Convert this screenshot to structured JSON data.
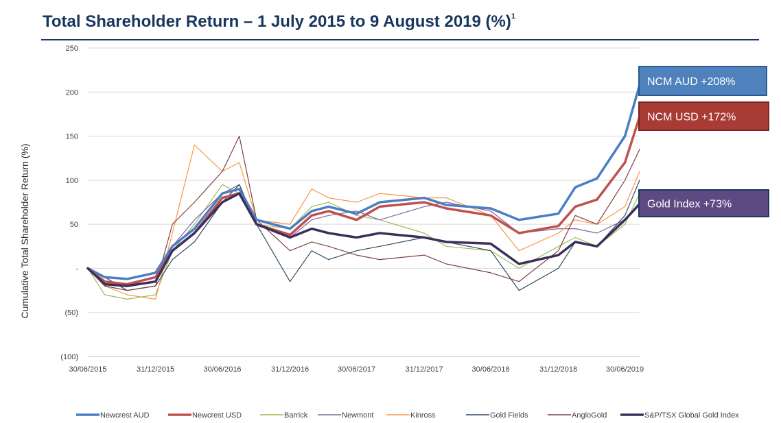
{
  "title": {
    "main": "Total Shareholder Return – 1 July 2015 to 9 August 2019 (%)",
    "footnote": "1"
  },
  "chart_data": {
    "type": "line",
    "ylabel": "Cumulative Total Shareholder Return (%)",
    "ylim": [
      -100,
      250
    ],
    "y_ticks": [
      250,
      200,
      150,
      100,
      50,
      0,
      -50,
      -100
    ],
    "y_tick_labels": [
      "250",
      "200",
      "150",
      "100",
      "50",
      "-",
      "(50)",
      "(100)"
    ],
    "x_ticks": [
      "30/06/2015",
      "31/12/2015",
      "30/06/2016",
      "31/12/2016",
      "30/06/2017",
      "31/12/2017",
      "30/06/2018",
      "31/12/2018",
      "30/06/2019"
    ],
    "x_range": [
      "2015-06-30",
      "2019-08-09"
    ],
    "grid": "horizontal",
    "legend_position": "bottom",
    "series": [
      {
        "name": "Newcrest AUD",
        "color": "#4a7ec4",
        "width": 3.5,
        "points": [
          [
            "2015-06-30",
            0
          ],
          [
            "2015-08-15",
            -10
          ],
          [
            "2015-10-15",
            -12
          ],
          [
            "2015-12-31",
            -5
          ],
          [
            "2016-02-15",
            25
          ],
          [
            "2016-04-15",
            45
          ],
          [
            "2016-06-30",
            85
          ],
          [
            "2016-08-15",
            90
          ],
          [
            "2016-10-01",
            55
          ],
          [
            "2016-12-31",
            45
          ],
          [
            "2017-02-28",
            65
          ],
          [
            "2017-04-15",
            70
          ],
          [
            "2017-06-30",
            62
          ],
          [
            "2017-09-01",
            75
          ],
          [
            "2017-12-31",
            80
          ],
          [
            "2018-03-01",
            72
          ],
          [
            "2018-06-30",
            68
          ],
          [
            "2018-09-15",
            55
          ],
          [
            "2018-12-31",
            62
          ],
          [
            "2019-02-15",
            92
          ],
          [
            "2019-04-15",
            102
          ],
          [
            "2019-06-30",
            150
          ],
          [
            "2019-08-09",
            208
          ]
        ]
      },
      {
        "name": "Newcrest USD",
        "color": "#c0504d",
        "width": 3.5,
        "points": [
          [
            "2015-06-30",
            0
          ],
          [
            "2015-08-15",
            -15
          ],
          [
            "2015-10-15",
            -18
          ],
          [
            "2015-12-31",
            -10
          ],
          [
            "2016-02-15",
            20
          ],
          [
            "2016-04-15",
            40
          ],
          [
            "2016-06-30",
            80
          ],
          [
            "2016-08-15",
            85
          ],
          [
            "2016-10-01",
            50
          ],
          [
            "2016-12-31",
            38
          ],
          [
            "2017-02-28",
            60
          ],
          [
            "2017-04-15",
            65
          ],
          [
            "2017-06-30",
            55
          ],
          [
            "2017-09-01",
            70
          ],
          [
            "2017-12-31",
            75
          ],
          [
            "2018-03-01",
            68
          ],
          [
            "2018-06-30",
            60
          ],
          [
            "2018-09-15",
            40
          ],
          [
            "2018-12-31",
            48
          ],
          [
            "2019-02-15",
            70
          ],
          [
            "2019-04-15",
            78
          ],
          [
            "2019-06-30",
            120
          ],
          [
            "2019-08-09",
            172
          ]
        ]
      },
      {
        "name": "Barrick",
        "color": "#9bbb59",
        "width": 1.2,
        "points": [
          [
            "2015-06-30",
            0
          ],
          [
            "2015-08-15",
            -30
          ],
          [
            "2015-10-15",
            -35
          ],
          [
            "2015-12-31",
            -30
          ],
          [
            "2016-02-15",
            20
          ],
          [
            "2016-04-15",
            50
          ],
          [
            "2016-06-30",
            95
          ],
          [
            "2016-08-15",
            85
          ],
          [
            "2016-10-01",
            50
          ],
          [
            "2016-12-31",
            45
          ],
          [
            "2017-02-28",
            70
          ],
          [
            "2017-04-15",
            75
          ],
          [
            "2017-06-30",
            60
          ],
          [
            "2017-09-01",
            55
          ],
          [
            "2017-12-31",
            40
          ],
          [
            "2018-03-01",
            25
          ],
          [
            "2018-06-30",
            20
          ],
          [
            "2018-09-15",
            0
          ],
          [
            "2018-12-31",
            25
          ],
          [
            "2019-02-15",
            35
          ],
          [
            "2019-04-15",
            25
          ],
          [
            "2019-06-30",
            50
          ],
          [
            "2019-08-09",
            85
          ]
        ]
      },
      {
        "name": "Newmont",
        "color": "#8064a2",
        "width": 1.2,
        "points": [
          [
            "2015-06-30",
            0
          ],
          [
            "2015-08-15",
            -15
          ],
          [
            "2015-10-15",
            -20
          ],
          [
            "2015-12-31",
            -10
          ],
          [
            "2016-02-15",
            25
          ],
          [
            "2016-04-15",
            55
          ],
          [
            "2016-06-30",
            85
          ],
          [
            "2016-08-15",
            95
          ],
          [
            "2016-10-01",
            50
          ],
          [
            "2016-12-31",
            35
          ],
          [
            "2017-02-28",
            55
          ],
          [
            "2017-04-15",
            60
          ],
          [
            "2017-06-30",
            65
          ],
          [
            "2017-09-01",
            55
          ],
          [
            "2017-12-31",
            70
          ],
          [
            "2018-03-01",
            75
          ],
          [
            "2018-06-30",
            65
          ],
          [
            "2018-09-15",
            40
          ],
          [
            "2018-12-31",
            45
          ],
          [
            "2019-02-15",
            45
          ],
          [
            "2019-04-15",
            40
          ],
          [
            "2019-06-30",
            55
          ],
          [
            "2019-08-09",
            75
          ]
        ]
      },
      {
        "name": "Kinross",
        "color": "#f79646",
        "width": 1.2,
        "points": [
          [
            "2015-06-30",
            0
          ],
          [
            "2015-08-15",
            -20
          ],
          [
            "2015-10-15",
            -30
          ],
          [
            "2015-12-31",
            -35
          ],
          [
            "2016-02-15",
            40
          ],
          [
            "2016-04-15",
            140
          ],
          [
            "2016-06-30",
            110
          ],
          [
            "2016-08-15",
            120
          ],
          [
            "2016-10-01",
            55
          ],
          [
            "2016-12-31",
            50
          ],
          [
            "2017-02-28",
            90
          ],
          [
            "2017-04-15",
            80
          ],
          [
            "2017-06-30",
            75
          ],
          [
            "2017-09-01",
            85
          ],
          [
            "2017-12-31",
            80
          ],
          [
            "2018-03-01",
            80
          ],
          [
            "2018-06-30",
            60
          ],
          [
            "2018-09-15",
            20
          ],
          [
            "2018-12-31",
            40
          ],
          [
            "2019-02-15",
            55
          ],
          [
            "2019-04-15",
            50
          ],
          [
            "2019-06-30",
            70
          ],
          [
            "2019-08-09",
            110
          ]
        ]
      },
      {
        "name": "Gold Fields",
        "color": "#2e4a62",
        "width": 1.2,
        "points": [
          [
            "2015-06-30",
            0
          ],
          [
            "2015-08-15",
            -10
          ],
          [
            "2015-10-15",
            -25
          ],
          [
            "2015-12-31",
            -20
          ],
          [
            "2016-02-15",
            10
          ],
          [
            "2016-04-15",
            30
          ],
          [
            "2016-06-30",
            75
          ],
          [
            "2016-08-15",
            95
          ],
          [
            "2016-10-01",
            50
          ],
          [
            "2016-12-31",
            -15
          ],
          [
            "2017-02-28",
            20
          ],
          [
            "2017-04-15",
            10
          ],
          [
            "2017-06-30",
            20
          ],
          [
            "2017-09-01",
            25
          ],
          [
            "2017-12-31",
            35
          ],
          [
            "2018-03-01",
            30
          ],
          [
            "2018-06-30",
            20
          ],
          [
            "2018-09-15",
            -25
          ],
          [
            "2018-12-31",
            0
          ],
          [
            "2019-02-15",
            30
          ],
          [
            "2019-04-15",
            25
          ],
          [
            "2019-06-30",
            60
          ],
          [
            "2019-08-09",
            100
          ]
        ]
      },
      {
        "name": "AngloGold",
        "color": "#7f3f3f",
        "width": 1.2,
        "points": [
          [
            "2015-06-30",
            0
          ],
          [
            "2015-08-15",
            -20
          ],
          [
            "2015-10-15",
            -25
          ],
          [
            "2015-12-31",
            -20
          ],
          [
            "2016-02-15",
            50
          ],
          [
            "2016-04-15",
            75
          ],
          [
            "2016-06-30",
            110
          ],
          [
            "2016-08-15",
            150
          ],
          [
            "2016-10-01",
            55
          ],
          [
            "2016-12-31",
            20
          ],
          [
            "2017-02-28",
            30
          ],
          [
            "2017-04-15",
            25
          ],
          [
            "2017-06-30",
            15
          ],
          [
            "2017-09-01",
            10
          ],
          [
            "2017-12-31",
            15
          ],
          [
            "2018-03-01",
            5
          ],
          [
            "2018-06-30",
            -5
          ],
          [
            "2018-09-15",
            -15
          ],
          [
            "2018-12-31",
            20
          ],
          [
            "2019-02-15",
            60
          ],
          [
            "2019-04-15",
            50
          ],
          [
            "2019-06-30",
            100
          ],
          [
            "2019-08-09",
            135
          ]
        ]
      },
      {
        "name": "S&P/TSX Global Gold Index",
        "color": "#3d2f5b",
        "width": 3.5,
        "points": [
          [
            "2015-06-30",
            0
          ],
          [
            "2015-08-15",
            -18
          ],
          [
            "2015-10-15",
            -20
          ],
          [
            "2015-12-31",
            -15
          ],
          [
            "2016-02-15",
            20
          ],
          [
            "2016-04-15",
            40
          ],
          [
            "2016-06-30",
            75
          ],
          [
            "2016-08-15",
            85
          ],
          [
            "2016-10-01",
            50
          ],
          [
            "2016-12-31",
            35
          ],
          [
            "2017-02-28",
            45
          ],
          [
            "2017-04-15",
            40
          ],
          [
            "2017-06-30",
            35
          ],
          [
            "2017-09-01",
            40
          ],
          [
            "2017-12-31",
            35
          ],
          [
            "2018-03-01",
            30
          ],
          [
            "2018-06-30",
            28
          ],
          [
            "2018-09-15",
            5
          ],
          [
            "2018-12-31",
            15
          ],
          [
            "2019-02-15",
            30
          ],
          [
            "2019-04-15",
            25
          ],
          [
            "2019-06-30",
            55
          ],
          [
            "2019-08-09",
            73
          ]
        ]
      }
    ],
    "callouts": [
      {
        "text": "NCM AUD +208%",
        "fill": "#4f81bd",
        "stroke": "#2a5a8f"
      },
      {
        "text": "NCM USD +172%",
        "fill": "#a83b36",
        "stroke": "#7a2622"
      },
      {
        "text": "Gold Index +73%",
        "fill": "#5d4a82",
        "stroke": "#1f3860"
      }
    ]
  }
}
